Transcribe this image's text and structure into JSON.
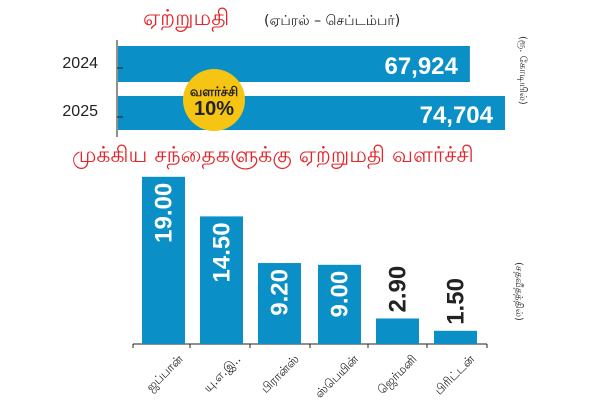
{
  "title": "ஏற்றுமதி",
  "subtitle": "(ஏப்ரல் – செப்டம்பர்)",
  "chart_data": [
    {
      "type": "bar",
      "orientation": "horizontal",
      "title": "ஏற்றுமதி",
      "subtitle": "(ஏப்ரல் – செப்டம்பர்)",
      "categories": [
        "2024",
        "2025"
      ],
      "values": [
        67924,
        74704
      ],
      "value_labels": [
        "67,924",
        "74,704"
      ],
      "unit_label": "(ரூ. கோடியில்)",
      "annotation": {
        "label": "வளர்ச்சி",
        "value": "10%"
      },
      "colors": {
        "bar": "#0a8fc7",
        "badge": "#f6c413"
      }
    },
    {
      "type": "bar",
      "title": "முக்கிய சந்தைகளுக்கு ஏற்றுமதி வளர்ச்சி",
      "categories": [
        "ஜப்பான்",
        "யு.எ.இ..",
        "பிரான்ஸ்",
        "ஸ்பெயின்",
        "ஜெர்மனி",
        "பிரிட்டன்"
      ],
      "values": [
        19.0,
        14.5,
        9.2,
        9.0,
        2.9,
        1.5
      ],
      "value_labels": [
        "19.00",
        "14.50",
        "9.20",
        "9.00",
        "2.90",
        "1.50"
      ],
      "unit_label": "(சதவீதத்தில்)",
      "grid": false,
      "colors": {
        "bar": "#0a8fc7"
      }
    }
  ]
}
